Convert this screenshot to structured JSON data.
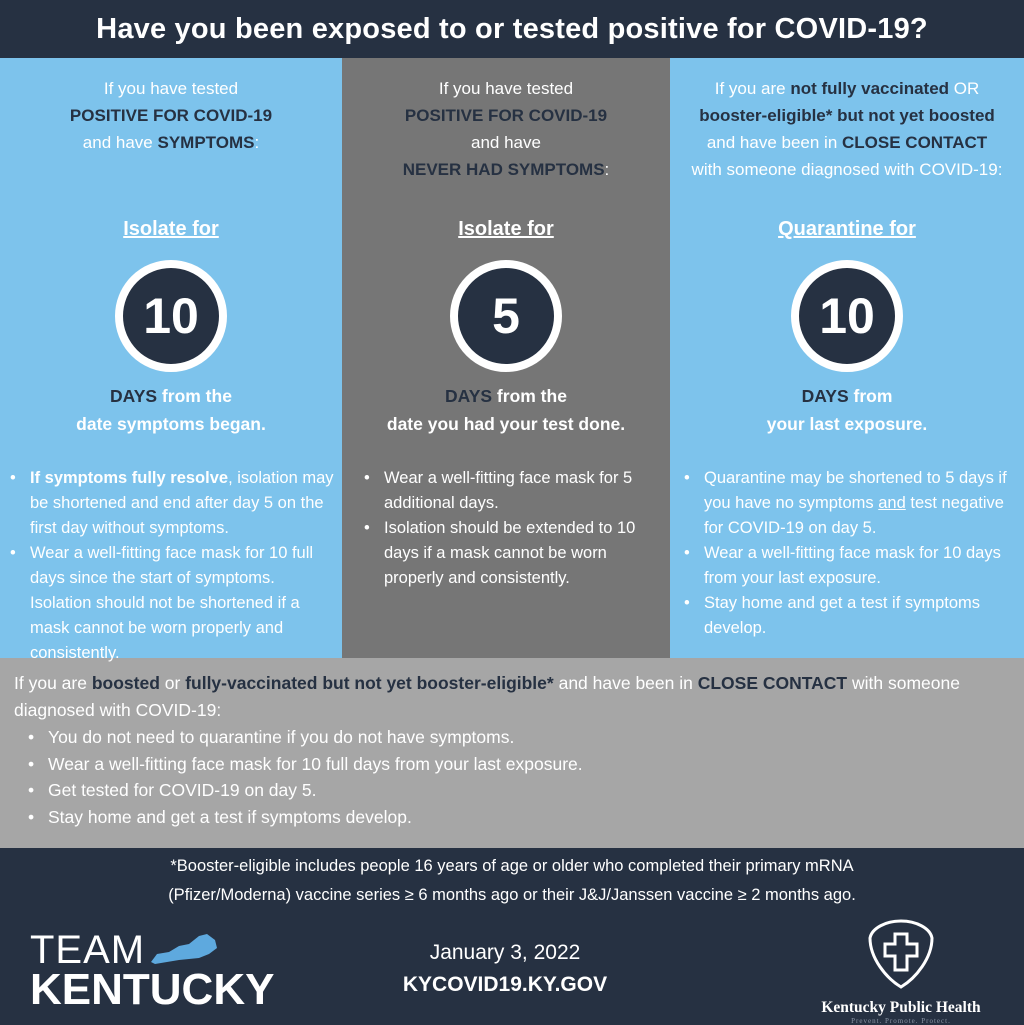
{
  "header": {
    "title": "Have you been exposed to or tested positive for COVID-19?"
  },
  "colors": {
    "navy": "#263142",
    "light_blue": "#7dc3ec",
    "gray": "#767676",
    "light_gray": "#a6a6a6",
    "white": "#ffffff"
  },
  "columns": [
    {
      "intro": [
        [
          {
            "t": "If you have tested"
          }
        ],
        [
          {
            "t": "POSITIVE FOR COVID-19",
            "b": 1
          }
        ],
        [
          {
            "t": "and have "
          },
          {
            "t": "SYMPTOMS",
            "b": 1
          },
          {
            "t": ":"
          }
        ]
      ],
      "action": "Isolate for ",
      "number": "10",
      "days": [
        [
          {
            "t": "DAYS",
            "b": 1
          },
          {
            "t": " from the",
            "w": 1
          }
        ],
        [
          {
            "t": "date symptoms began.",
            "w": 1
          }
        ]
      ],
      "bullets": [
        [
          {
            "t": "If symptoms fully resolve",
            "w": 1
          },
          {
            "t": ", isolation may be shortened and end after day 5 on the first day without symptoms."
          }
        ],
        [
          {
            "t": "Wear a well-fitting face mask for 10 full days since the start of symptoms. Isolation should not be shortened if a mask cannot be worn properly and consistently."
          }
        ]
      ]
    },
    {
      "intro": [
        [
          {
            "t": "If you have tested"
          }
        ],
        [
          {
            "t": "POSITIVE FOR COVID-19",
            "b": 1
          }
        ],
        [
          {
            "t": "and have"
          }
        ],
        [
          {
            "t": "NEVER HAD SYMPTOMS",
            "b": 1
          },
          {
            "t": ":"
          }
        ]
      ],
      "action": "Isolate for ",
      "number": "5",
      "days": [
        [
          {
            "t": "DAYS",
            "b": 1
          },
          {
            "t": " from the",
            "w": 1
          }
        ],
        [
          {
            "t": "date you had your test done.",
            "w": 1
          }
        ]
      ],
      "bullets": [
        [
          {
            "t": "Wear a well-fitting face mask for 5 additional days."
          }
        ],
        [
          {
            "t": "Isolation should be extended to 10 days if a mask cannot be worn properly and consistently."
          }
        ]
      ]
    },
    {
      "intro": [
        [
          {
            "t": "If you are "
          },
          {
            "t": "not fully vaccinated",
            "b": 1
          },
          {
            "t": " OR"
          }
        ],
        [
          {
            "t": "booster-eligible* but not yet boosted",
            "b": 1
          }
        ],
        [
          {
            "t": "and have been in "
          },
          {
            "t": "CLOSE CONTACT",
            "b": 1
          }
        ],
        [
          {
            "t": "with someone diagnosed with COVID-19:"
          }
        ]
      ],
      "action": "Quarantine for ",
      "number": "10",
      "days": [
        [
          {
            "t": "DAYS",
            "b": 1
          },
          {
            "t": " from",
            "w": 1
          }
        ],
        [
          {
            "t": "your last exposure.",
            "w": 1
          }
        ]
      ],
      "bullets": [
        [
          {
            "t": "Quarantine may be shortened to 5 days if you have no symptoms "
          },
          {
            "t": "and",
            "u": 1
          },
          {
            "t": " test negative for COVID-19 on day 5."
          }
        ],
        [
          {
            "t": "Wear a well-fitting face mask for 10 days from your last exposure."
          }
        ],
        [
          {
            "t": "Stay home and get a test if symptoms develop."
          }
        ]
      ]
    }
  ],
  "boosted": {
    "intro": [
      {
        "t": "If you are "
      },
      {
        "t": "boosted",
        "b": 1
      },
      {
        "t": " or "
      },
      {
        "t": "fully-vaccinated but not yet booster-eligible*",
        "b": 1
      },
      {
        "t": " and have been in "
      },
      {
        "t": "CLOSE CONTACT",
        "b": 1
      },
      {
        "t": " with someone diagnosed with COVID-19:"
      }
    ],
    "bullets": [
      "You do not need to quarantine if you do not have symptoms.",
      "Wear a well-fitting face mask for 10 full days from your last exposure.",
      "Get tested for COVID-19 on day 5.",
      "Stay home and get a test if symptoms develop."
    ]
  },
  "footer": {
    "note_line1": "*Booster-eligible includes people 16 years of age or older who completed their primary mRNA",
    "note_line2": "(Pfizer/Moderna) vaccine series ≥ 6 months ago or their J&J/Janssen vaccine ≥ 2 months ago.",
    "logo_team_line1": "TEAM",
    "logo_team_line2": "KENTUCKY",
    "date": "January 3, 2022",
    "url": "KYCOVID19.KY.GOV",
    "kph_name": "Kentucky Public Health",
    "kph_tagline": "Prevent. Promote. Protect."
  }
}
